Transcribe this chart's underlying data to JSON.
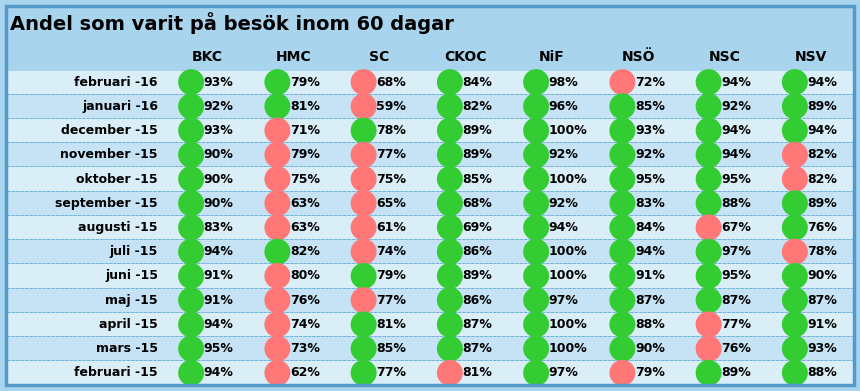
{
  "title": "Andel som varit på besök inom 60 dagar",
  "columns": [
    "BKC",
    "HMC",
    "SC",
    "CKOC",
    "NiF",
    "NSÖ",
    "NSC",
    "NSV"
  ],
  "rows": [
    "februari -16",
    "januari -16",
    "december -15",
    "november -15",
    "oktober -15",
    "september -15",
    "augusti -15",
    "juli -15",
    "juni -15",
    "maj -15",
    "april -15",
    "mars -15",
    "februari -15"
  ],
  "values": [
    [
      93,
      79,
      68,
      84,
      98,
      72,
      94,
      94
    ],
    [
      92,
      81,
      59,
      82,
      96,
      85,
      92,
      89
    ],
    [
      93,
      71,
      78,
      89,
      100,
      93,
      94,
      94
    ],
    [
      90,
      79,
      77,
      89,
      92,
      92,
      94,
      82
    ],
    [
      90,
      75,
      75,
      85,
      100,
      95,
      95,
      82
    ],
    [
      90,
      63,
      65,
      68,
      92,
      83,
      88,
      89
    ],
    [
      83,
      63,
      61,
      69,
      94,
      84,
      67,
      76
    ],
    [
      94,
      82,
      74,
      86,
      100,
      94,
      97,
      78
    ],
    [
      91,
      80,
      79,
      89,
      100,
      91,
      95,
      90
    ],
    [
      91,
      76,
      77,
      86,
      97,
      87,
      87,
      87
    ],
    [
      94,
      74,
      81,
      87,
      100,
      88,
      77,
      91
    ],
    [
      95,
      73,
      85,
      87,
      100,
      90,
      76,
      93
    ],
    [
      94,
      62,
      77,
      81,
      97,
      79,
      89,
      88
    ]
  ],
  "colors": [
    [
      "green",
      "green",
      "red",
      "green",
      "green",
      "red",
      "green",
      "green"
    ],
    [
      "green",
      "green",
      "red",
      "green",
      "green",
      "green",
      "green",
      "green"
    ],
    [
      "green",
      "red",
      "green",
      "green",
      "green",
      "green",
      "green",
      "green"
    ],
    [
      "green",
      "red",
      "red",
      "green",
      "green",
      "green",
      "green",
      "red"
    ],
    [
      "green",
      "red",
      "red",
      "green",
      "green",
      "green",
      "green",
      "red"
    ],
    [
      "green",
      "red",
      "red",
      "green",
      "green",
      "green",
      "green",
      "green"
    ],
    [
      "green",
      "red",
      "red",
      "green",
      "green",
      "green",
      "red",
      "green"
    ],
    [
      "green",
      "green",
      "red",
      "green",
      "green",
      "green",
      "green",
      "red"
    ],
    [
      "green",
      "red",
      "green",
      "green",
      "green",
      "green",
      "green",
      "green"
    ],
    [
      "green",
      "red",
      "red",
      "green",
      "green",
      "green",
      "green",
      "green"
    ],
    [
      "green",
      "red",
      "green",
      "green",
      "green",
      "green",
      "red",
      "green"
    ],
    [
      "green",
      "red",
      "green",
      "green",
      "green",
      "green",
      "red",
      "green"
    ],
    [
      "green",
      "red",
      "green",
      "red",
      "green",
      "red",
      "green",
      "green"
    ]
  ],
  "green_color": "#33cc33",
  "red_color": "#ff7777",
  "bg_color": "#a8d4ee",
  "row_bg_light": "#daeef8",
  "row_bg_mid": "#c5e3f5",
  "border_color": "#6aaed6",
  "title_fontsize": 14,
  "header_fontsize": 10,
  "cell_fontsize": 9,
  "row_label_fontsize": 9
}
